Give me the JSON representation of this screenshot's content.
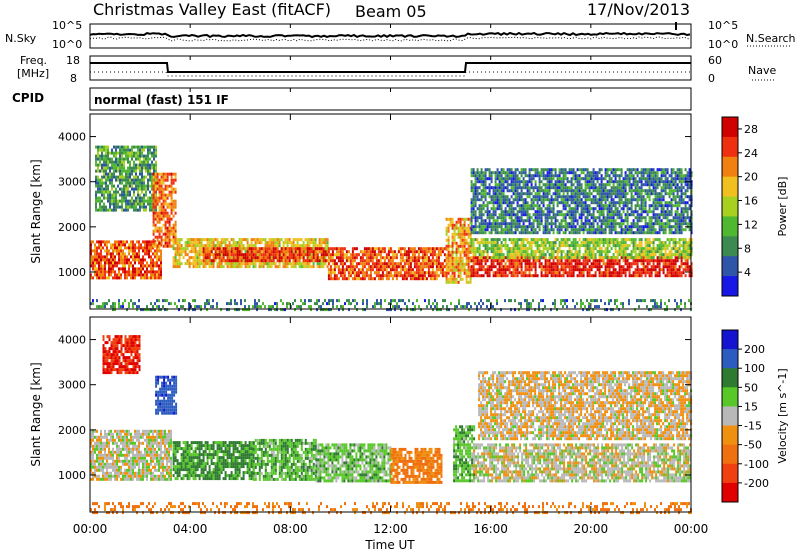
{
  "header": {
    "radar": "Christmas Valley East (fitACF)",
    "beam": "Beam 05",
    "date": "17/Nov/2013"
  },
  "strip_labels": {
    "nsky": "N.Sky",
    "nsearch": "N.Search",
    "freq_line1": "Freq.",
    "freq_line2": "[MHz]",
    "nave": "Nave",
    "cpid": "CPID",
    "cpid_value": "normal (fast) 151 IF",
    "noise_ticks": [
      "10^5",
      "10^0"
    ],
    "freq_ticks": [
      "18",
      "8"
    ],
    "nave_ticks": [
      "60",
      "0"
    ]
  },
  "colors": {
    "power": [
      "#1818e6",
      "#2e55a8",
      "#3c8a50",
      "#50b830",
      "#a8d020",
      "#f0c020",
      "#f08010",
      "#ee3010",
      "#d00000"
    ],
    "velocity": [
      "#1414d0",
      "#2c5cc0",
      "#2e7a30",
      "#58c828",
      "#b8b8b8",
      "#f09010",
      "#f07010",
      "#f04010",
      "#e00000"
    ]
  },
  "chart_data": [
    {
      "type": "heatmap",
      "title": "Power",
      "ylabel": "Slant Range [km]",
      "xlabel": "Time UT",
      "x_ticks": [
        "00:00",
        "04:00",
        "08:00",
        "12:00",
        "16:00",
        "20:00",
        "00:00"
      ],
      "xlim_hours": [
        0,
        24
      ],
      "y_ticks": [
        1000,
        2000,
        3000,
        4000
      ],
      "ylim": [
        180,
        4500
      ],
      "colorbar_label": "Power [dB]",
      "colorbar_ticks": [
        4,
        8,
        12,
        16,
        20,
        24,
        28
      ],
      "colorbar_range": [
        0,
        30
      ],
      "regions": [
        {
          "t0": 0.0,
          "t1": 2.8,
          "r0": 900,
          "r1": 1700,
          "value": 24
        },
        {
          "t0": 0.2,
          "t1": 2.6,
          "r0": 2400,
          "r1": 3800,
          "value": 10
        },
        {
          "t0": 2.5,
          "t1": 3.4,
          "r0": 1600,
          "r1": 3200,
          "value": 22
        },
        {
          "t0": 3.3,
          "t1": 9.5,
          "r0": 1100,
          "r1": 1750,
          "value": 18
        },
        {
          "t0": 4.5,
          "t1": 9.5,
          "r0": 1250,
          "r1": 1550,
          "value": 26
        },
        {
          "t0": 9.5,
          "t1": 14.2,
          "r0": 850,
          "r1": 1550,
          "value": 24
        },
        {
          "t0": 14.2,
          "t1": 15.2,
          "r0": 800,
          "r1": 2200,
          "value": 20
        },
        {
          "t0": 15.2,
          "t1": 24.0,
          "r0": 900,
          "r1": 1350,
          "value": 27
        },
        {
          "t0": 15.2,
          "t1": 24.0,
          "r0": 1350,
          "r1": 1750,
          "value": 14
        },
        {
          "t0": 15.2,
          "t1": 24.0,
          "r0": 1900,
          "r1": 3300,
          "value": 7
        },
        {
          "t0": 0.0,
          "t1": 24.0,
          "r0": 180,
          "r1": 400,
          "value": 8
        }
      ]
    },
    {
      "type": "heatmap",
      "title": "Velocity",
      "ylabel": "Slant Range [km]",
      "xlabel": "Time UT",
      "x_ticks": [
        "00:00",
        "04:00",
        "08:00",
        "12:00",
        "16:00",
        "20:00",
        "00:00"
      ],
      "xlim_hours": [
        0,
        24
      ],
      "y_ticks": [
        1000,
        2000,
        3000,
        4000
      ],
      "ylim": [
        180,
        4500
      ],
      "colorbar_label": "Velocity [m s^-1]",
      "colorbar_ticks": [
        200,
        100,
        50,
        15,
        -15,
        -50,
        -100,
        -200
      ],
      "regions": [
        {
          "t0": 0.0,
          "t1": 3.2,
          "r0": 900,
          "r1": 2000,
          "value": 0
        },
        {
          "t0": 0.5,
          "t1": 2.0,
          "r0": 3300,
          "r1": 4100,
          "value": -200
        },
        {
          "t0": 2.6,
          "t1": 3.4,
          "r0": 2400,
          "r1": 3200,
          "value": 180
        },
        {
          "t0": 3.3,
          "t1": 6.5,
          "r0": 900,
          "r1": 1750,
          "value": 60
        },
        {
          "t0": 6.5,
          "t1": 9.0,
          "r0": 900,
          "r1": 1800,
          "value": 40
        },
        {
          "t0": 9.0,
          "t1": 12.0,
          "r0": 900,
          "r1": 1700,
          "value": 30
        },
        {
          "t0": 12.0,
          "t1": 14.0,
          "r0": 850,
          "r1": 1600,
          "value": -60
        },
        {
          "t0": 14.5,
          "t1": 15.3,
          "r0": 850,
          "r1": 2100,
          "value": 40
        },
        {
          "t0": 15.3,
          "t1": 24.0,
          "r0": 900,
          "r1": 1700,
          "value": 0
        },
        {
          "t0": 15.5,
          "t1": 24.0,
          "r0": 1800,
          "r1": 3300,
          "value": -10
        },
        {
          "t0": 0.0,
          "t1": 24.0,
          "r0": 180,
          "r1": 400,
          "value": -60
        }
      ]
    }
  ]
}
